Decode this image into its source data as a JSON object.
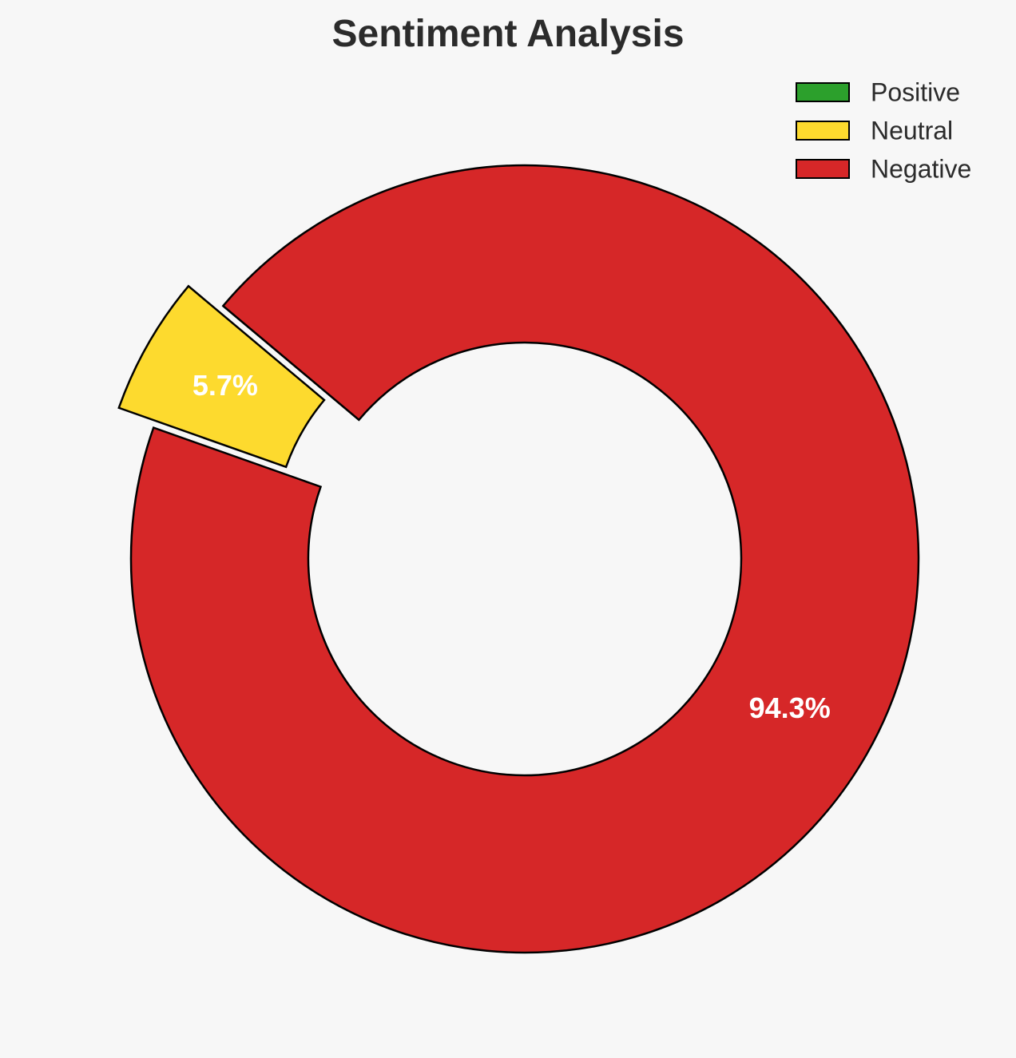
{
  "chart_data": {
    "type": "pie",
    "title": "Sentiment Analysis",
    "categories": [
      "Positive",
      "Neutral",
      "Negative"
    ],
    "values": [
      0.0,
      5.7,
      94.3
    ],
    "labels": [
      "",
      "5.7%",
      "94.3%"
    ],
    "colors": [
      "#2ca02c",
      "#fdda2e",
      "#d62728"
    ],
    "edge_color": "#000000",
    "exploded": [
      false,
      true,
      false
    ],
    "donut": true,
    "legend_position": "top-right",
    "start_angle_deg": 140,
    "direction": "counterclockwise"
  }
}
